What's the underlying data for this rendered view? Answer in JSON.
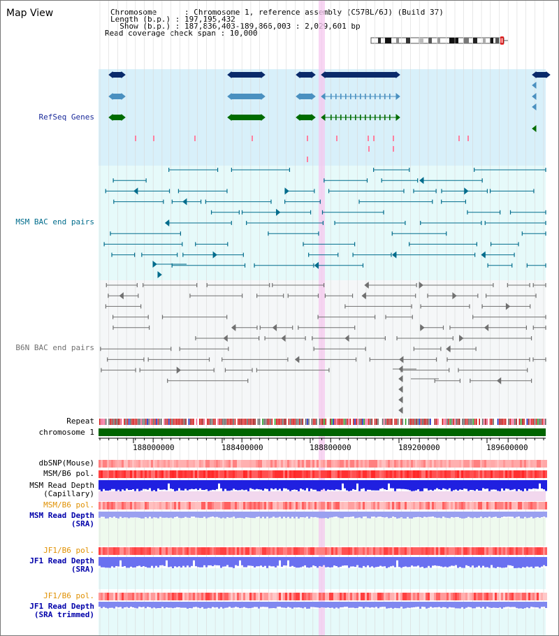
{
  "app_title": "Map View",
  "info": {
    "chromosome": "Chromosome      : Chromosome 1, reference assembly (C57BL/6J) (Build 37)",
    "length": "Length (b.p.) : 197,195,432",
    "show": "  Show (b.p.) : 187,836,403-189,866,003 : 2,029,601 bp",
    "coverage": "Read coverage check span : 10,000"
  },
  "tracks": {
    "refseq": {
      "label": "RefSeq Genes",
      "color": "#1a2a9a"
    },
    "msm_bac": {
      "label": "MSM BAC end pairs",
      "color": "#006c8c"
    },
    "b6n_bac": {
      "label": "B6N BAC end pairs",
      "color": "#707070"
    },
    "repeat": {
      "label": "Repeat",
      "color": "#000000"
    },
    "chromosome": {
      "label": "chromosome 1",
      "color": "#000000"
    },
    "dbsnp": {
      "label": "dbSNP(Mouse)",
      "color": "#000000"
    },
    "msm_b6_pol_1": {
      "label": "MSM/B6 pol.",
      "color": "#000000"
    },
    "msm_read_depth_cap": {
      "label1": "MSM Read Depth",
      "label2": "(Capillary)",
      "color": "#000000"
    },
    "msm_b6_pol_2": {
      "label": "MSM/B6 pol.",
      "color": "#e09000"
    },
    "msm_read_depth_sra": {
      "label1": "MSM Read Depth",
      "label2": "(SRA)",
      "color": "#0000aa"
    },
    "jf1_b6_pol_1": {
      "label": "JF1/B6 pol.",
      "color": "#e09000"
    },
    "jf1_read_depth_sra": {
      "label1": "JF1 Read Depth",
      "label2": "(SRA)",
      "color": "#0000aa"
    },
    "jf1_b6_pol_2": {
      "label": "JF1/B6 pol.",
      "color": "#e09000"
    },
    "jf1_read_depth_trim": {
      "label1": "JF1 Read Depth",
      "label2": "(SRA trimmed)",
      "color": "#0000aa"
    }
  },
  "axis": {
    "ticks": [
      "188000000",
      "188400000",
      "188800000",
      "189200000",
      "189600000"
    ]
  }
}
